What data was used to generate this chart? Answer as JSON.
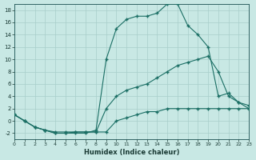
{
  "xlabel": "Humidex (Indice chaleur)",
  "bg_color": "#c8e8e4",
  "grid_color": "#a8ceca",
  "line_color": "#1a6e64",
  "xlim": [
    0,
    23
  ],
  "ylim": [
    -3,
    19
  ],
  "xticks": [
    0,
    1,
    2,
    3,
    4,
    5,
    6,
    7,
    8,
    9,
    10,
    11,
    12,
    13,
    14,
    15,
    16,
    17,
    18,
    19,
    20,
    21,
    22,
    23
  ],
  "yticks": [
    -2,
    0,
    2,
    4,
    6,
    8,
    10,
    12,
    14,
    16,
    18
  ],
  "curve1_x": [
    0,
    1,
    2,
    3,
    4,
    5,
    6,
    7,
    8,
    9,
    10,
    11,
    12,
    13,
    14,
    15,
    16,
    17,
    18,
    19,
    20,
    21,
    22,
    23
  ],
  "curve1_y": [
    1,
    0,
    -1,
    -1.5,
    -2,
    -2,
    -1.8,
    -1.8,
    -1.8,
    -1.8,
    0,
    0.5,
    1,
    1.5,
    1.5,
    2,
    2,
    2,
    2,
    2,
    2,
    2,
    2,
    2
  ],
  "curve2_x": [
    0,
    1,
    2,
    3,
    4,
    5,
    6,
    7,
    8,
    9,
    10,
    11,
    12,
    13,
    14,
    15,
    16,
    17,
    18,
    19,
    20,
    21,
    22,
    23
  ],
  "curve2_y": [
    1,
    0,
    -1,
    -1.5,
    -1.8,
    -1.8,
    -1.8,
    -1.8,
    -1.8,
    2,
    4,
    5,
    5.5,
    6,
    7,
    8,
    9,
    9.5,
    10,
    10.5,
    8,
    4,
    3,
    2
  ],
  "curve3_x": [
    0,
    1,
    2,
    3,
    4,
    5,
    6,
    7,
    8,
    9,
    10,
    11,
    12,
    13,
    14,
    15,
    16,
    17,
    18,
    19,
    20,
    21,
    22,
    23
  ],
  "curve3_y": [
    1,
    0,
    -1,
    -1.5,
    -2,
    -2,
    -2,
    -2,
    -1.5,
    10,
    15,
    16.5,
    17,
    17,
    17.5,
    19,
    19,
    15.5,
    14,
    12,
    4,
    4.5,
    3,
    2.5
  ]
}
